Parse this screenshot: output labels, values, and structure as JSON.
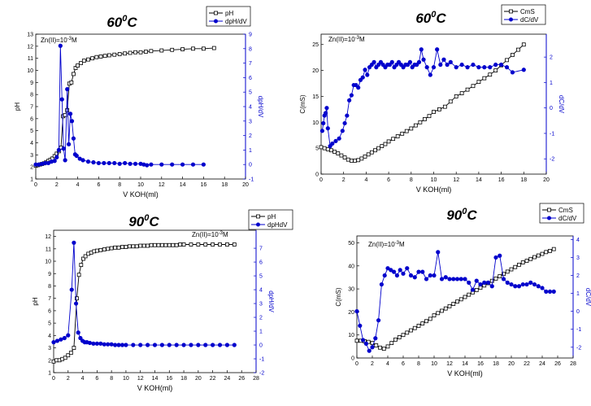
{
  "colors": {
    "ph": "#000000",
    "derivative": "#0000cc"
  },
  "chart_data": [
    {
      "id": "p1",
      "type": "line",
      "title": "60",
      "title_sup": "0",
      "title_unit": "C",
      "xlabel": "V KOH(ml)",
      "ylabel_left": "pH",
      "ylabel_right": "dpH/dV",
      "annotation": "Zn(II)=10",
      "annotation_sup": "-3",
      "annotation_unit": "M",
      "xlim": [
        0,
        20
      ],
      "xticks": [
        "0",
        "2",
        "4",
        "6",
        "8",
        "10",
        "12",
        "14",
        "16",
        "18",
        "20"
      ],
      "ylim_left": [
        1,
        13
      ],
      "yticks_left": [
        "1",
        "2",
        "3",
        "4",
        "5",
        "6",
        "7",
        "8",
        "9",
        "10",
        "11",
        "12",
        "13"
      ],
      "ylim_right": [
        -1,
        9
      ],
      "yticks_right": [
        "-1",
        "0",
        "1",
        "2",
        "3",
        "4",
        "5",
        "6",
        "7",
        "8",
        "9"
      ],
      "legend": [
        "pH",
        "dpH/dV"
      ],
      "series": [
        {
          "name": "pH",
          "axis": "left",
          "marker": "square",
          "x": [
            0,
            0.2,
            0.4,
            0.6,
            0.8,
            1.0,
            1.2,
            1.4,
            1.6,
            1.8,
            2.0,
            2.2,
            2.4,
            2.6,
            2.8,
            3.0,
            3.2,
            3.4,
            3.6,
            3.8,
            4.0,
            4.3,
            4.6,
            5.0,
            5.4,
            5.8,
            6.2,
            6.6,
            7.0,
            7.5,
            8.0,
            8.5,
            9.0,
            9.5,
            10.0,
            10.5,
            11.0,
            12.0,
            13.0,
            14.0,
            15.0,
            16.0,
            17.0
          ],
          "y": [
            2.1,
            2.15,
            2.2,
            2.25,
            2.3,
            2.4,
            2.5,
            2.6,
            2.7,
            2.9,
            3.1,
            3.3,
            3.6,
            6.2,
            6.3,
            6.7,
            8.9,
            9.0,
            9.7,
            10.2,
            10.4,
            10.6,
            10.8,
            10.9,
            11.0,
            11.1,
            11.15,
            11.2,
            11.25,
            11.3,
            11.35,
            11.4,
            11.45,
            11.5,
            11.5,
            11.55,
            11.6,
            11.65,
            11.7,
            11.75,
            11.8,
            11.8,
            11.85
          ]
        },
        {
          "name": "dpH/dV",
          "axis": "right",
          "marker": "circle",
          "x": [
            0,
            0.3,
            0.6,
            0.9,
            1.2,
            1.5,
            1.8,
            2.0,
            2.2,
            2.35,
            2.5,
            2.65,
            2.8,
            3.0,
            3.15,
            3.3,
            3.45,
            3.6,
            3.75,
            3.9,
            4.2,
            4.5,
            5.0,
            5.5,
            6.0,
            6.5,
            7.0,
            7.5,
            8.0,
            8.5,
            9.0,
            9.5,
            10.0,
            10.3,
            10.6,
            11.0,
            12.0,
            13.0,
            14.0,
            15.0,
            16.0
          ],
          "y": [
            0,
            0,
            0.05,
            0.1,
            0.1,
            0.2,
            0.25,
            0.5,
            1.0,
            8.2,
            4.5,
            1.1,
            0.3,
            5.2,
            1.4,
            3.5,
            3.0,
            1.8,
            0.7,
            0.6,
            0.4,
            0.3,
            0.2,
            0.15,
            0.1,
            0.1,
            0.1,
            0.1,
            0.05,
            0.1,
            0.05,
            0.05,
            0.05,
            0.0,
            -0.05,
            0.0,
            0.0,
            0.0,
            0.0,
            0.0,
            0.0
          ]
        }
      ]
    },
    {
      "id": "p2",
      "type": "line",
      "title": "60",
      "title_sup": "0",
      "title_unit": "C",
      "xlabel": "V KOH(ml)",
      "ylabel_left": "C(mS)",
      "ylabel_right": "dC/dV",
      "annotation": "Zn(II)=10",
      "annotation_sup": "-3",
      "annotation_unit": "M",
      "xlim": [
        0,
        20
      ],
      "xticks": [
        "0",
        "2",
        "4",
        "6",
        "8",
        "10",
        "12",
        "14",
        "16",
        "18",
        "20"
      ],
      "ylim_left": [
        0,
        27
      ],
      "yticks_left": [
        "0",
        "5",
        "10",
        "15",
        "20",
        "25"
      ],
      "ylim_right": [
        -2.6,
        2.9
      ],
      "yticks_right": [
        "-2",
        "-1",
        "0",
        "1",
        "2"
      ],
      "legend": [
        "CmS",
        "dC/dV"
      ],
      "series": [
        {
          "name": "CmS",
          "axis": "left",
          "marker": "square",
          "x": [
            0,
            0.3,
            0.6,
            0.9,
            1.2,
            1.5,
            1.8,
            2.1,
            2.4,
            2.7,
            3.0,
            3.3,
            3.6,
            3.9,
            4.2,
            4.5,
            4.8,
            5.1,
            5.4,
            5.7,
            6.0,
            6.4,
            6.8,
            7.2,
            7.6,
            8.0,
            8.4,
            8.8,
            9.2,
            9.6,
            10.0,
            10.5,
            11.0,
            11.5,
            12.0,
            12.5,
            13.0,
            13.5,
            14.0,
            14.5,
            15.0,
            15.5,
            16.0,
            16.5,
            17.0,
            17.5,
            18.0
          ],
          "y": [
            5.2,
            5.0,
            4.8,
            4.6,
            4.3,
            4.0,
            3.6,
            3.2,
            2.8,
            2.6,
            2.6,
            2.7,
            3.0,
            3.4,
            3.8,
            4.2,
            4.6,
            5.0,
            5.4,
            5.8,
            6.3,
            6.8,
            7.3,
            7.8,
            8.3,
            8.8,
            9.4,
            10.0,
            10.6,
            11.2,
            12.0,
            12.5,
            13.0,
            14.0,
            15.0,
            15.6,
            16.3,
            17.0,
            17.8,
            18.5,
            19.2,
            20.0,
            21.0,
            22.0,
            23.0,
            24.0,
            25.0
          ]
        },
        {
          "name": "dC/dV",
          "axis": "right",
          "marker": "circle",
          "x": [
            0.1,
            0.2,
            0.3,
            0.4,
            0.5,
            0.6,
            0.8,
            1.0,
            1.3,
            1.6,
            1.9,
            2.1,
            2.3,
            2.5,
            2.7,
            2.9,
            3.1,
            3.3,
            3.5,
            3.7,
            3.9,
            4.1,
            4.3,
            4.5,
            4.7,
            4.9,
            5.1,
            5.3,
            5.5,
            5.7,
            5.9,
            6.1,
            6.3,
            6.5,
            6.7,
            6.9,
            7.1,
            7.3,
            7.5,
            7.7,
            7.9,
            8.1,
            8.3,
            8.5,
            8.7,
            8.9,
            9.1,
            9.4,
            9.7,
            10.0,
            10.3,
            10.6,
            10.9,
            11.2,
            11.5,
            12.0,
            12.5,
            13.0,
            13.5,
            14.0,
            14.5,
            15.0,
            15.5,
            16.0,
            16.5,
            17.0,
            18.0
          ],
          "y": [
            -0.9,
            -0.6,
            -0.3,
            -0.2,
            0.0,
            -0.8,
            -1.5,
            -1.4,
            -1.3,
            -1.2,
            -0.9,
            -0.6,
            -0.3,
            0.3,
            0.5,
            0.9,
            0.9,
            0.8,
            1.1,
            1.2,
            1.5,
            1.3,
            1.6,
            1.7,
            1.8,
            1.6,
            1.7,
            1.8,
            1.7,
            1.6,
            1.7,
            1.7,
            1.8,
            1.6,
            1.7,
            1.8,
            1.7,
            1.6,
            1.7,
            1.7,
            1.8,
            1.6,
            1.7,
            1.7,
            1.8,
            2.3,
            1.9,
            1.6,
            1.3,
            1.6,
            2.3,
            1.7,
            1.9,
            1.7,
            1.8,
            1.6,
            1.7,
            1.6,
            1.7,
            1.6,
            1.6,
            1.6,
            1.7,
            1.7,
            1.6,
            1.4,
            1.5
          ]
        }
      ]
    },
    {
      "id": "p3",
      "type": "line",
      "title": "90",
      "title_sup": "0",
      "title_unit": "C",
      "xlabel": "V KOH(ml)",
      "ylabel_left": "pH",
      "ylabel_right": "dpH/dV",
      "annotation": "Zn(II)=10",
      "annotation_sup": "-3",
      "annotation_unit": "M",
      "xlim": [
        0,
        28
      ],
      "xticks": [
        "0",
        "2",
        "4",
        "6",
        "8",
        "10",
        "12",
        "14",
        "16",
        "18",
        "20",
        "22",
        "24",
        "26",
        "28"
      ],
      "ylim_left": [
        1,
        12.5
      ],
      "yticks_left": [
        "1",
        "2",
        "3",
        "4",
        "5",
        "6",
        "7",
        "8",
        "9",
        "10",
        "11",
        "12"
      ],
      "ylim_right": [
        -2,
        8.3
      ],
      "yticks_right": [
        "-2",
        "-1",
        "0",
        "1",
        "2",
        "3",
        "4",
        "5",
        "6",
        "7"
      ],
      "legend": [
        "pH",
        "dpHdV"
      ],
      "series": [
        {
          "name": "pH",
          "axis": "left",
          "marker": "square",
          "x": [
            0,
            0.4,
            0.8,
            1.2,
            1.6,
            2.0,
            2.4,
            2.8,
            3.2,
            3.5,
            3.8,
            4.1,
            4.4,
            4.8,
            5.2,
            5.6,
            6.0,
            6.5,
            7.0,
            7.5,
            8.0,
            8.5,
            9.0,
            9.5,
            10.0,
            10.5,
            11.0,
            11.5,
            12.0,
            12.5,
            13.0,
            13.5,
            14.0,
            14.5,
            15.0,
            15.5,
            16.0,
            16.5,
            17.0,
            17.5,
            18.0,
            19.0,
            20.0,
            21.0,
            22.0,
            23.0,
            24.0,
            25.0
          ],
          "y": [
            1.9,
            2.0,
            2.0,
            2.1,
            2.2,
            2.4,
            2.6,
            3.0,
            7.0,
            8.9,
            9.7,
            10.2,
            10.4,
            10.6,
            10.7,
            10.8,
            10.85,
            10.9,
            10.95,
            11.0,
            11.05,
            11.1,
            11.1,
            11.15,
            11.15,
            11.2,
            11.2,
            11.2,
            11.25,
            11.25,
            11.25,
            11.3,
            11.3,
            11.3,
            11.3,
            11.3,
            11.3,
            11.3,
            11.3,
            11.35,
            11.35,
            11.35,
            11.35,
            11.35,
            11.35,
            11.35,
            11.35,
            11.35
          ]
        },
        {
          "name": "dpHdV",
          "axis": "right",
          "marker": "circle",
          "x": [
            0,
            0.5,
            1.0,
            1.5,
            2.0,
            2.5,
            2.8,
            3.1,
            3.4,
            3.7,
            4.0,
            4.3,
            4.6,
            5.0,
            5.5,
            6.0,
            6.5,
            7.0,
            7.5,
            8.0,
            8.5,
            9.0,
            9.5,
            10.0,
            11.0,
            12.0,
            13.0,
            14.0,
            15.0,
            16.0,
            17.0,
            18.0,
            19.0,
            20.0,
            21.0,
            22.0,
            23.0,
            24.0,
            25.0
          ],
          "y": [
            0.2,
            0.3,
            0.4,
            0.5,
            0.7,
            4.0,
            7.4,
            3.0,
            0.9,
            0.5,
            0.3,
            0.2,
            0.2,
            0.15,
            0.1,
            0.1,
            0.1,
            0.05,
            0.05,
            0.05,
            0.0,
            0.0,
            0.0,
            0.0,
            0.0,
            0.0,
            0.0,
            0.0,
            0.0,
            0.0,
            0.0,
            0.0,
            0.0,
            0.0,
            0.0,
            0.0,
            0.0,
            0.0,
            0.0
          ]
        }
      ]
    },
    {
      "id": "p4",
      "type": "line",
      "title": "90",
      "title_sup": "0",
      "title_unit": "C",
      "xlabel": "V KOH(ml)",
      "ylabel_left": "C(mS)",
      "ylabel_right": "dC/dV",
      "annotation": "Zn(II)=10",
      "annotation_sup": "-3",
      "annotation_unit": "M",
      "xlim": [
        0,
        28
      ],
      "xticks": [
        "0",
        "2",
        "4",
        "6",
        "8",
        "10",
        "12",
        "14",
        "16",
        "18",
        "20",
        "22",
        "24",
        "26",
        "28"
      ],
      "ylim_left": [
        0,
        53
      ],
      "yticks_left": [
        "0",
        "10",
        "20",
        "30",
        "40",
        "50"
      ],
      "ylim_right": [
        -2.6,
        4.2
      ],
      "yticks_right": [
        "-2",
        "-1",
        "0",
        "1",
        "2",
        "3",
        "4"
      ],
      "legend": [
        "CmS",
        "dC/dV"
      ],
      "series": [
        {
          "name": "CmS",
          "axis": "left",
          "marker": "square",
          "x": [
            0,
            0.5,
            1.0,
            1.5,
            2.0,
            2.5,
            3.0,
            3.5,
            4.0,
            4.5,
            5.0,
            5.5,
            6.0,
            6.5,
            7.0,
            7.5,
            8.0,
            8.5,
            9.0,
            9.5,
            10.0,
            10.5,
            11.0,
            11.5,
            12.0,
            12.5,
            13.0,
            13.5,
            14.0,
            14.5,
            15.0,
            15.5,
            16.0,
            16.5,
            17.0,
            17.5,
            18.0,
            18.5,
            19.0,
            19.5,
            20.0,
            20.5,
            21.0,
            21.5,
            22.0,
            22.5,
            23.0,
            23.5,
            24.0,
            24.5,
            25.0,
            25.5
          ],
          "y": [
            7.5,
            7.5,
            7.3,
            7.0,
            6.5,
            5.5,
            4.5,
            4.0,
            5.0,
            6.5,
            8.0,
            9.0,
            10.0,
            11.0,
            12.0,
            13.0,
            14.0,
            15.0,
            16.0,
            17.0,
            18.5,
            19.5,
            20.5,
            21.5,
            22.5,
            23.5,
            24.5,
            25.5,
            26.5,
            27.5,
            28.5,
            29.5,
            30.5,
            31.5,
            32.5,
            33.5,
            34.5,
            35.5,
            36.5,
            37.5,
            38.5,
            39.5,
            40.5,
            41.5,
            42.2,
            43.0,
            43.8,
            44.5,
            45.2,
            46.0,
            46.5,
            47.3
          ]
        },
        {
          "name": "dC/dV",
          "axis": "right",
          "marker": "circle",
          "x": [
            0,
            0.4,
            0.8,
            1.2,
            1.6,
            2.0,
            2.4,
            2.8,
            3.2,
            3.6,
            4.0,
            4.4,
            4.8,
            5.2,
            5.6,
            6.0,
            6.5,
            7.0,
            7.5,
            8.0,
            8.5,
            9.0,
            9.5,
            10.0,
            10.5,
            11.0,
            11.5,
            12.0,
            12.5,
            13.0,
            13.5,
            14.0,
            14.5,
            15.0,
            15.5,
            16.0,
            16.5,
            17.0,
            17.5,
            18.0,
            18.5,
            19.0,
            19.5,
            20.0,
            20.5,
            21.0,
            21.5,
            22.0,
            22.5,
            23.0,
            23.5,
            24.0,
            24.5,
            25.0,
            25.5
          ],
          "y": [
            0.0,
            -0.8,
            -1.6,
            -1.8,
            -2.2,
            -2.0,
            -1.5,
            -0.5,
            1.5,
            2.0,
            2.4,
            2.3,
            2.2,
            2.0,
            2.3,
            2.1,
            2.4,
            2.0,
            1.9,
            2.2,
            2.2,
            1.8,
            2.0,
            2.0,
            3.3,
            1.8,
            1.9,
            1.8,
            1.8,
            1.8,
            1.8,
            1.8,
            1.6,
            1.2,
            1.7,
            1.5,
            1.6,
            1.6,
            1.4,
            3.0,
            3.1,
            1.8,
            1.6,
            1.5,
            1.4,
            1.4,
            1.5,
            1.5,
            1.6,
            1.5,
            1.4,
            1.3,
            1.1,
            1.1,
            1.1
          ]
        }
      ]
    }
  ]
}
